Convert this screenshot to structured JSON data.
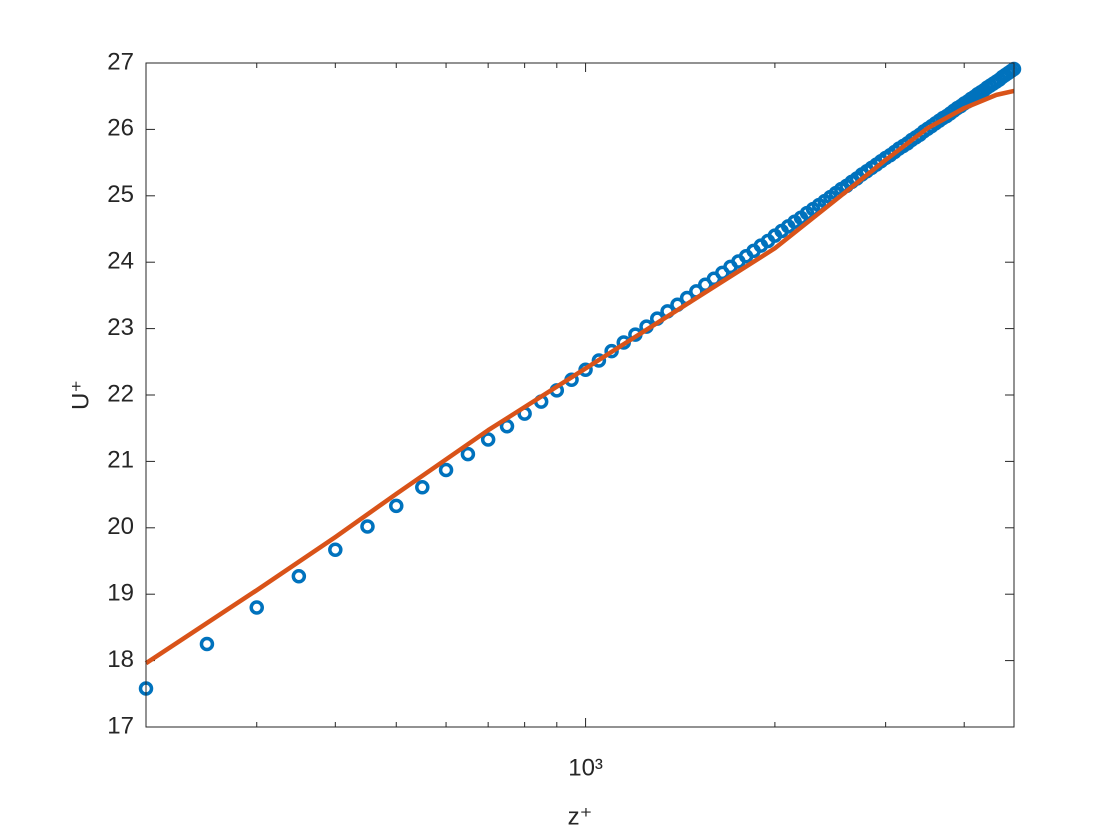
{
  "chart_data": {
    "type": "line",
    "xlabel": "z⁺",
    "ylabel": "U⁺",
    "log_x": true,
    "box": true,
    "xlim": [
      200,
      4800
    ],
    "ylim": [
      17,
      27
    ],
    "xticks": [
      {
        "value": 1000,
        "label": "10³"
      }
    ],
    "xminorticks": [
      300,
      400,
      500,
      600,
      700,
      800,
      900,
      2000,
      3000,
      4000
    ],
    "yticks": [
      17,
      18,
      19,
      20,
      21,
      22,
      23,
      24,
      25,
      26,
      27
    ],
    "series": [
      {
        "style": "markers",
        "color": "#0072BD",
        "x": [
          200,
          250,
          300,
          350,
          400,
          450,
          500,
          550,
          600,
          650,
          700,
          750,
          800,
          850,
          900,
          950,
          1000,
          1050,
          1100,
          1150,
          1200,
          1250,
          1300,
          1350,
          1400,
          1450,
          1500,
          1550,
          1600,
          1650,
          1700,
          1750,
          1800,
          1850,
          1900,
          1950,
          2000,
          2050,
          2100,
          2150,
          2200,
          2250,
          2300,
          2350,
          2400,
          2450,
          2500,
          2550,
          2600,
          2650,
          2700,
          2750,
          2800,
          2850,
          2900,
          2950,
          3000,
          3050,
          3100,
          3150,
          3200,
          3250,
          3300,
          3350,
          3400,
          3450,
          3500,
          3550,
          3600,
          3650,
          3700,
          3750,
          3800,
          3850,
          3900,
          3950,
          4000,
          4050,
          4100,
          4150,
          4200,
          4250,
          4300,
          4350,
          4400,
          4450,
          4500,
          4550,
          4600,
          4650,
          4700,
          4750,
          4800
        ],
        "values": [
          17.58,
          18.25,
          18.8,
          19.27,
          19.67,
          20.02,
          20.33,
          20.61,
          20.87,
          21.11,
          21.33,
          21.53,
          21.72,
          21.9,
          22.07,
          22.23,
          22.38,
          22.52,
          22.66,
          22.79,
          22.91,
          23.03,
          23.15,
          23.26,
          23.36,
          23.46,
          23.56,
          23.66,
          23.75,
          23.84,
          23.93,
          24.01,
          24.09,
          24.17,
          24.25,
          24.32,
          24.4,
          24.47,
          24.54,
          24.61,
          24.67,
          24.74,
          24.8,
          24.86,
          24.92,
          24.98,
          25.04,
          25.1,
          25.15,
          25.21,
          25.26,
          25.32,
          25.37,
          25.42,
          25.47,
          25.52,
          25.57,
          25.61,
          25.66,
          25.71,
          25.75,
          25.79,
          25.84,
          25.88,
          25.92,
          25.97,
          26.01,
          26.05,
          26.09,
          26.13,
          26.17,
          26.2,
          26.24,
          26.28,
          26.32,
          26.35,
          26.39,
          26.42,
          26.46,
          26.49,
          26.53,
          26.56,
          26.59,
          26.63,
          26.66,
          26.69,
          26.72,
          26.75,
          26.79,
          26.82,
          26.85,
          26.88,
          26.91
        ]
      },
      {
        "style": "line",
        "color": "#D95319",
        "x": [
          200,
          300,
          400,
          500,
          700,
          1000,
          1500,
          2000,
          2500,
          3000,
          3500,
          4000,
          4500,
          4800
        ],
        "values": [
          17.96,
          19.06,
          19.86,
          20.51,
          21.47,
          22.4,
          23.46,
          24.21,
          24.94,
          25.54,
          26.02,
          26.32,
          26.52,
          26.58
        ]
      }
    ]
  }
}
